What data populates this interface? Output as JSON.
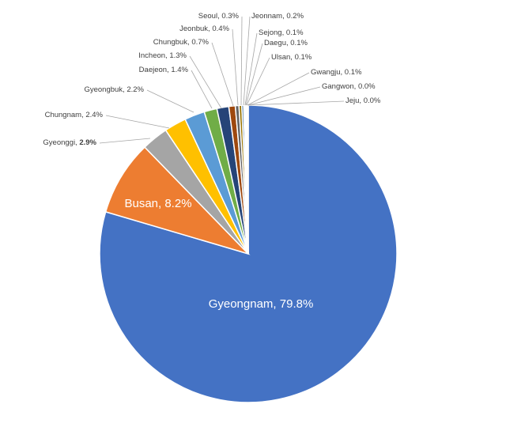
{
  "chart_data": {
    "type": "pie",
    "title": "",
    "slices": [
      {
        "label": "Gyeongnam",
        "value": 79.8,
        "display": "79.8%",
        "color": "#4472C4"
      },
      {
        "label": "Busan",
        "value": 8.2,
        "display": "8.2%",
        "color": "#ED7D31"
      },
      {
        "label": "Gyeonggi",
        "value": 2.9,
        "display": "2.9%",
        "color": "#A5A5A5"
      },
      {
        "label": "Chungnam",
        "value": 2.4,
        "display": "2.4%",
        "color": "#FFC000"
      },
      {
        "label": "Gyeongbuk",
        "value": 2.2,
        "display": "2.2%",
        "color": "#5B9BD5"
      },
      {
        "label": "Daejeon",
        "value": 1.4,
        "display": "1.4%",
        "color": "#70AD47"
      },
      {
        "label": "Incheon",
        "value": 1.3,
        "display": "1.3%",
        "color": "#264478"
      },
      {
        "label": "Chungbuk",
        "value": 0.7,
        "display": "0.7%",
        "color": "#9E480E"
      },
      {
        "label": "Jeonbuk",
        "value": 0.4,
        "display": "0.4%",
        "color": "#636363"
      },
      {
        "label": "Seoul",
        "value": 0.3,
        "display": "0.3%",
        "color": "#997300"
      },
      {
        "label": "Jeonnam",
        "value": 0.2,
        "display": "0.2%",
        "color": "#255E91"
      },
      {
        "label": "Sejong",
        "value": 0.1,
        "display": "0.1%",
        "color": "#43682B"
      },
      {
        "label": "Daegu",
        "value": 0.1,
        "display": "0.1%",
        "color": "#698ED0"
      },
      {
        "label": "Ulsan",
        "value": 0.1,
        "display": "0.1%",
        "color": "#F1975A"
      },
      {
        "label": "Gwangju",
        "value": 0.1,
        "display": "0.1%",
        "color": "#B7B7B7"
      },
      {
        "label": "Gangwon",
        "value": 0.0,
        "display": "0.0%",
        "color": "#FFCD33"
      },
      {
        "label": "Jeju",
        "value": 0.0,
        "display": "0.0%",
        "color": "#7CAFDD"
      }
    ],
    "legend": "none",
    "label_style": "category-name-and-percent"
  }
}
